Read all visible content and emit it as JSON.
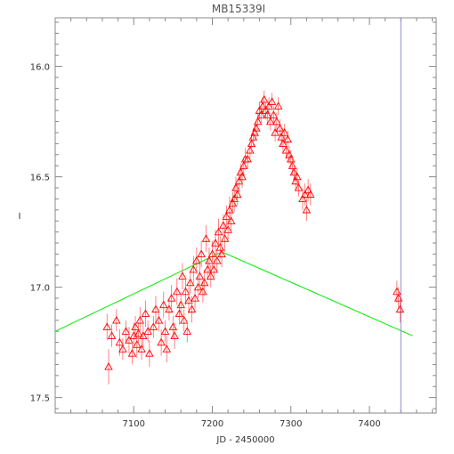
{
  "chart_data": {
    "type": "scatter",
    "title": "MB15339I",
    "xlabel": "JD - 2450000",
    "ylabel": "I",
    "xlim": [
      7000,
      7485
    ],
    "ylim": [
      17.57,
      15.78
    ],
    "y_inverted": true,
    "grid": false,
    "legend": "none",
    "x_ticks": [
      7100,
      7200,
      7300,
      7400
    ],
    "y_ticks": [
      16.0,
      16.5,
      17.0,
      17.5
    ],
    "x_tick_labels": [
      "7100",
      "7200",
      "7300",
      "7400"
    ],
    "y_tick_labels": [
      "16.0",
      "16.5",
      "17.0",
      "17.5"
    ],
    "colors": {
      "points": "#ff0000",
      "model": "#00ee00",
      "vertical": "#8888dd",
      "axes": "#888888"
    },
    "series": [
      {
        "kind": "points_with_errorbars",
        "marker": "triangle-open",
        "x": [
          7066,
          7068,
          7072,
          7078,
          7082,
          7086,
          7090,
          7094,
          7098,
          7100,
          7102,
          7104,
          7106,
          7108,
          7110,
          7112,
          7115,
          7118,
          7120,
          7125,
          7128,
          7132,
          7135,
          7138,
          7140,
          7142,
          7145,
          7148,
          7150,
          7152,
          7155,
          7158,
          7160,
          7162,
          7164,
          7166,
          7168,
          7170,
          7172,
          7174,
          7176,
          7178,
          7180,
          7182,
          7184,
          7186,
          7188,
          7190,
          7192,
          7194,
          7196,
          7198,
          7200,
          7202,
          7204,
          7206,
          7208,
          7210,
          7212,
          7214,
          7216,
          7218,
          7220,
          7222,
          7224,
          7226,
          7228,
          7230,
          7232,
          7234,
          7236,
          7238,
          7240,
          7242,
          7245,
          7248,
          7250,
          7252,
          7254,
          7256,
          7258,
          7260,
          7262,
          7264,
          7266,
          7268,
          7270,
          7272,
          7274,
          7276,
          7278,
          7280,
          7282,
          7284,
          7286,
          7288,
          7290,
          7292,
          7294,
          7296,
          7298,
          7300,
          7302,
          7304,
          7306,
          7308,
          7310,
          7315,
          7318,
          7320,
          7322,
          7325,
          7435,
          7437,
          7439
        ],
        "y": [
          17.18,
          17.36,
          17.22,
          17.15,
          17.25,
          17.28,
          17.2,
          17.24,
          17.3,
          17.22,
          17.18,
          17.26,
          17.21,
          17.15,
          17.28,
          17.22,
          17.12,
          17.2,
          17.3,
          17.18,
          17.1,
          17.15,
          17.25,
          17.08,
          17.2,
          17.28,
          17.1,
          17.05,
          17.18,
          17.22,
          17.02,
          17.12,
          17.08,
          16.95,
          17.15,
          17.02,
          17.2,
          17.06,
          16.98,
          17.1,
          16.92,
          17.05,
          16.88,
          17.0,
          16.95,
          16.85,
          17.02,
          16.98,
          16.78,
          16.92,
          16.88,
          16.95,
          16.85,
          16.92,
          16.8,
          16.88,
          16.75,
          16.82,
          16.85,
          16.72,
          16.78,
          16.68,
          16.74,
          16.65,
          16.7,
          16.62,
          16.6,
          16.55,
          16.58,
          16.52,
          16.48,
          16.5,
          16.45,
          16.42,
          16.42,
          16.38,
          16.35,
          16.32,
          16.3,
          16.28,
          16.25,
          16.2,
          16.22,
          16.18,
          16.15,
          16.2,
          16.22,
          16.18,
          16.25,
          16.16,
          16.22,
          16.3,
          16.25,
          16.18,
          16.28,
          16.32,
          16.35,
          16.3,
          16.38,
          16.33,
          16.4,
          16.42,
          16.45,
          16.48,
          16.52,
          16.5,
          16.55,
          16.6,
          16.58,
          16.65,
          16.56,
          16.58,
          17.02,
          17.05,
          17.1
        ],
        "error": [
          0.06,
          0.08,
          0.05,
          0.05,
          0.06,
          0.05,
          0.05,
          0.06,
          0.05,
          0.06,
          0.05,
          0.06,
          0.05,
          0.06,
          0.05,
          0.06,
          0.06,
          0.05,
          0.06,
          0.05,
          0.06,
          0.05,
          0.06,
          0.06,
          0.05,
          0.06,
          0.05,
          0.06,
          0.05,
          0.06,
          0.06,
          0.05,
          0.06,
          0.06,
          0.05,
          0.06,
          0.05,
          0.06,
          0.05,
          0.06,
          0.06,
          0.05,
          0.06,
          0.05,
          0.06,
          0.06,
          0.05,
          0.06,
          0.06,
          0.05,
          0.06,
          0.05,
          0.06,
          0.05,
          0.06,
          0.05,
          0.06,
          0.05,
          0.06,
          0.05,
          0.06,
          0.05,
          0.05,
          0.06,
          0.05,
          0.05,
          0.06,
          0.05,
          0.05,
          0.05,
          0.04,
          0.05,
          0.04,
          0.05,
          0.04,
          0.04,
          0.04,
          0.04,
          0.04,
          0.04,
          0.04,
          0.04,
          0.04,
          0.04,
          0.04,
          0.04,
          0.04,
          0.04,
          0.04,
          0.04,
          0.04,
          0.04,
          0.04,
          0.04,
          0.04,
          0.04,
          0.04,
          0.04,
          0.04,
          0.04,
          0.04,
          0.04,
          0.04,
          0.04,
          0.04,
          0.04,
          0.04,
          0.05,
          0.05,
          0.05,
          0.05,
          0.05,
          0.05,
          0.05,
          0.06
        ]
      },
      {
        "kind": "line",
        "x": [
          7000,
          7212,
          7455
        ],
        "y": [
          17.2,
          16.84,
          17.22
        ]
      },
      {
        "kind": "vertical_line",
        "x": 7440
      }
    ]
  }
}
